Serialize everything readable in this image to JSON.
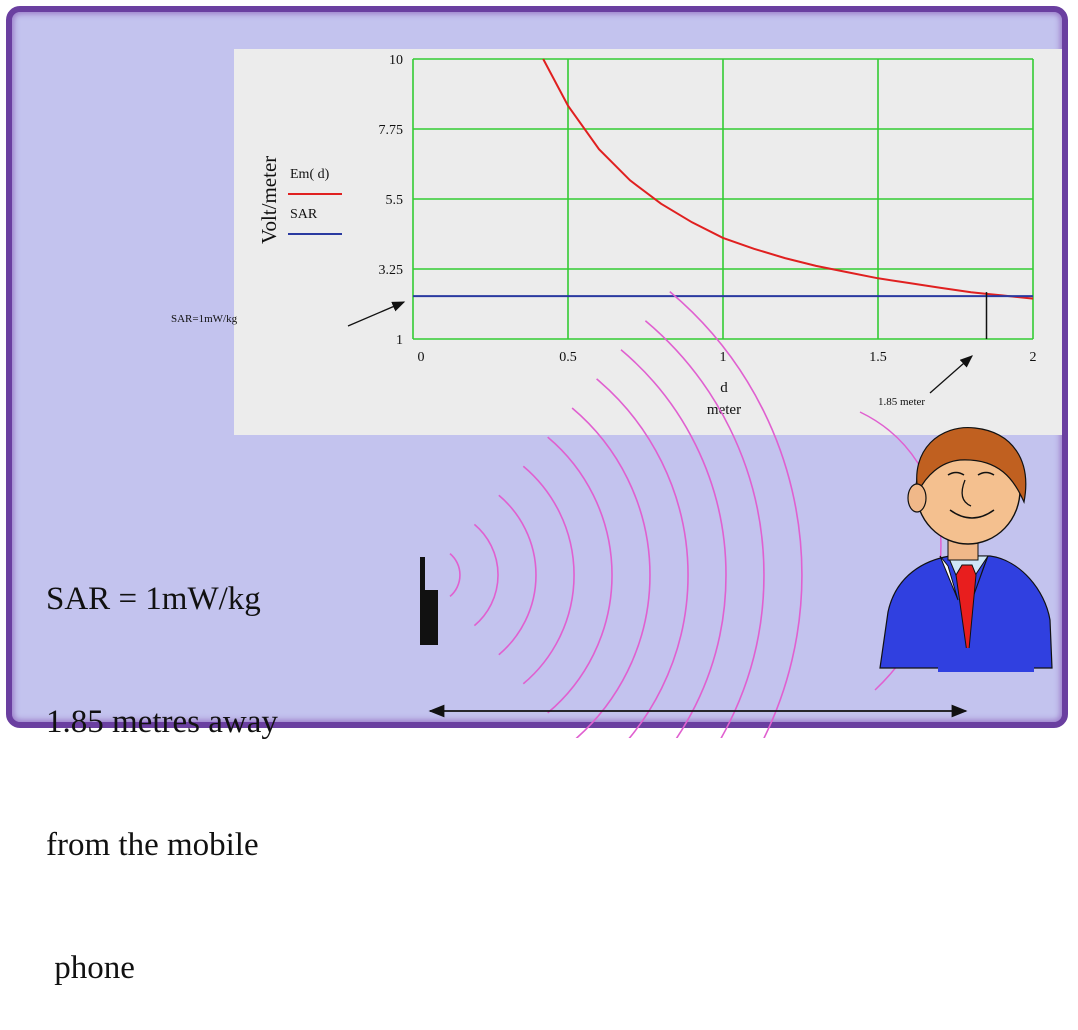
{
  "chart_data": {
    "type": "line",
    "ylabel": "Volt/meter",
    "xlabel": "d",
    "xunit": "meter",
    "xlim": [
      0,
      2
    ],
    "ylim": [
      1,
      10
    ],
    "x_ticks": [
      "0",
      "0.5",
      "1",
      "1.5",
      "2"
    ],
    "y_ticks": [
      "1",
      "3.25",
      "5.5",
      "7.75",
      "10"
    ],
    "grid": true,
    "legend_position": "left",
    "series": [
      {
        "name": "Em( d)",
        "color": "#e02020",
        "x": [
          0.42,
          0.5,
          0.6,
          0.7,
          0.8,
          0.9,
          1.0,
          1.1,
          1.2,
          1.3,
          1.4,
          1.5,
          1.6,
          1.7,
          1.8,
          1.85,
          1.9,
          2.0
        ],
        "y": [
          10.0,
          8.5,
          7.1,
          6.1,
          5.35,
          4.75,
          4.25,
          3.9,
          3.6,
          3.35,
          3.15,
          2.95,
          2.8,
          2.65,
          2.5,
          2.45,
          2.4,
          2.3
        ]
      },
      {
        "name": "SAR",
        "color": "#2a3aa0",
        "x": [
          0,
          2
        ],
        "y": [
          2.38,
          2.38
        ]
      }
    ],
    "annotations": {
      "sar_label": "SAR=1mW/kg",
      "distance_label": "1.85 meter",
      "distance_x": 1.85
    }
  },
  "caption": {
    "lines": [
      "SAR = 1mW/kg",
      "1.85 metres away",
      "from the mobile",
      " phone"
    ]
  },
  "colors": {
    "frame_border": "#6a3fa0",
    "background": "#c3c3ee",
    "grid": "#33cc33",
    "waves": "#e060d0"
  },
  "icons": [
    "mobile-phone-icon",
    "man-in-suit-illustration"
  ]
}
